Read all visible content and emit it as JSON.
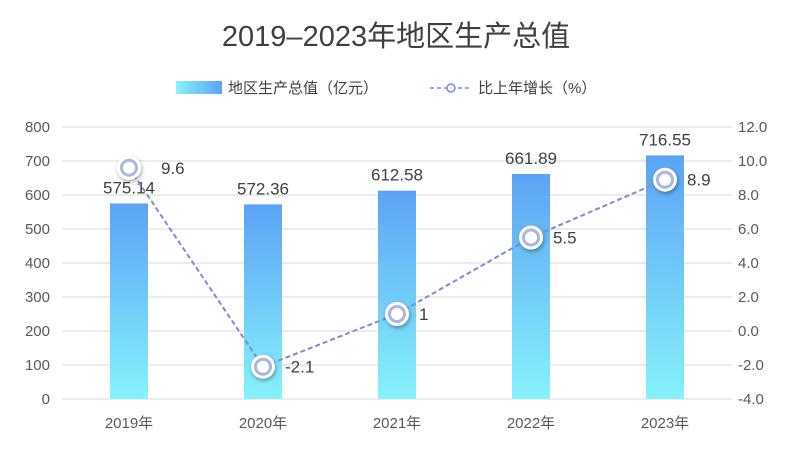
{
  "chart_data": {
    "type": "bar+line",
    "title": "2019–2023年地区生产总值",
    "categories": [
      "2019年",
      "2020年",
      "2021年",
      "2022年",
      "2023年"
    ],
    "series": [
      {
        "name": "地区生产总值（亿元）",
        "type": "bar",
        "axis": "left",
        "values": [
          575.14,
          572.36,
          612.58,
          661.89,
          716.55
        ],
        "labels": [
          "575.14",
          "572.36",
          "612.58",
          "661.89",
          "716.55"
        ],
        "color_top": "#5ba3f5",
        "color_bottom": "#86f2fb"
      },
      {
        "name": "比上年增长（%）",
        "type": "line",
        "axis": "right",
        "values": [
          9.6,
          -2.1,
          1,
          5.5,
          8.9
        ],
        "labels": [
          "9.6",
          "-2.1",
          "1",
          "5.5",
          "8.9"
        ],
        "color": "#7b8dd6"
      }
    ],
    "y_left": {
      "min": 0,
      "max": 800,
      "ticks": [
        "0",
        "100",
        "200",
        "300",
        "400",
        "500",
        "600",
        "700",
        "800"
      ]
    },
    "y_right": {
      "min": -4,
      "max": 12,
      "ticks": [
        "-4.0",
        "-2.0",
        "0.0",
        "2.0",
        "4.0",
        "6.0",
        "8.0",
        "10.0",
        "12.0"
      ]
    },
    "grid": true,
    "legend_position": "top-center"
  }
}
